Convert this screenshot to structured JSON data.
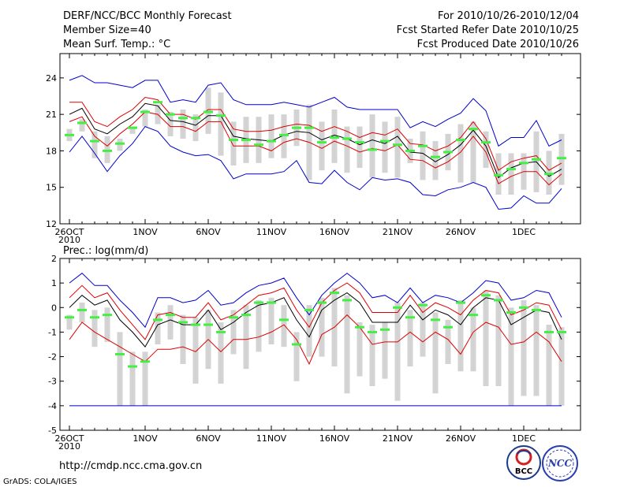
{
  "header": {
    "left_line1": "DERF/NCC/BCC Monthly Forecast",
    "left_line2": "Member Size=40",
    "left_line3": "Mean Surf. Temp.: °C",
    "right_line1": "For 2010/10/26-2010/12/04",
    "right_line2": "Fcst Started Refer Date 2010/10/25",
    "right_line3": "Fcst Produced Date 2010/10/26"
  },
  "footer": {
    "url": "http://cmdp.ncc.cma.gov.cn",
    "grads": "GrADS: COLA/IGES",
    "logo1_text": "BCC",
    "logo2_text": "NCC"
  },
  "colors": {
    "bar": "#d3d3d3",
    "ens_mean": "#000000",
    "spread": "#dd0000",
    "extremes": "#0000cc",
    "median": "#44ee44"
  },
  "chart_data": [
    {
      "type": "line",
      "title": "Mean Surf. Temp.: °C",
      "ylim": [
        12,
        26
      ],
      "yticks": [
        12,
        15,
        18,
        21,
        24
      ],
      "x_tick_labels": [
        "26OCT",
        "1NOV",
        "6NOV",
        "11NOV",
        "16NOV",
        "21NOV",
        "26NOV",
        "1DEC"
      ],
      "x_year_label": "2010",
      "days": 40,
      "series": [
        {
          "name": "max",
          "values": [
            23.8,
            24.2,
            23.6,
            23.6,
            23.4,
            23.2,
            23.8,
            23.8,
            22.0,
            22.2,
            22.0,
            23.4,
            23.6,
            22.2,
            21.8,
            21.8,
            21.8,
            22.0,
            21.8,
            21.6,
            22.0,
            22.4,
            21.6,
            21.4,
            21.4,
            21.4,
            21.4,
            19.9,
            20.4,
            20.0,
            20.6,
            21.1,
            22.3,
            21.3,
            18.4,
            19.1,
            19.1,
            20.5,
            18.4,
            18.9
          ]
        },
        {
          "name": "spread_upper",
          "values": [
            22.0,
            22.0,
            20.4,
            20.0,
            20.8,
            21.4,
            22.4,
            22.2,
            21.0,
            21.0,
            20.6,
            21.4,
            21.4,
            19.8,
            19.6,
            19.6,
            19.7,
            20.0,
            20.2,
            20.1,
            19.6,
            20.0,
            19.6,
            19.1,
            19.5,
            19.3,
            19.8,
            18.6,
            18.5,
            18.0,
            18.4,
            19.1,
            20.4,
            19.0,
            16.4,
            17.1,
            17.4,
            17.6,
            16.4,
            17.0
          ]
        },
        {
          "name": "mean",
          "values": [
            21.0,
            21.5,
            19.8,
            19.4,
            20.2,
            20.8,
            21.9,
            21.7,
            20.5,
            20.4,
            20.1,
            20.9,
            20.9,
            19.2,
            19.0,
            18.9,
            18.8,
            19.3,
            19.6,
            19.5,
            18.9,
            19.3,
            19.0,
            18.5,
            18.9,
            18.6,
            19.2,
            17.9,
            17.8,
            17.1,
            17.7,
            18.5,
            19.7,
            18.4,
            15.8,
            16.6,
            17.0,
            17.1,
            15.9,
            16.5
          ]
        },
        {
          "name": "spread_lower",
          "values": [
            20.4,
            20.8,
            19.2,
            18.4,
            19.4,
            20.2,
            21.2,
            21.0,
            20.0,
            20.0,
            19.6,
            20.4,
            20.4,
            18.4,
            18.4,
            18.4,
            18.0,
            18.7,
            19.0,
            18.7,
            18.2,
            18.8,
            18.4,
            17.9,
            18.2,
            18.0,
            18.5,
            17.3,
            17.2,
            16.6,
            17.1,
            17.9,
            19.2,
            17.9,
            15.3,
            15.9,
            16.3,
            16.3,
            15.2,
            16.1
          ]
        },
        {
          "name": "min",
          "values": [
            17.9,
            19.2,
            17.8,
            16.3,
            17.6,
            18.6,
            20.0,
            19.6,
            18.4,
            17.9,
            17.6,
            17.7,
            17.2,
            15.7,
            16.1,
            16.1,
            16.1,
            16.3,
            17.2,
            15.4,
            15.3,
            16.4,
            15.4,
            14.8,
            15.8,
            15.6,
            15.7,
            15.4,
            14.4,
            14.3,
            14.8,
            15.0,
            15.4,
            15.0,
            13.2,
            13.3,
            14.3,
            13.7,
            13.7,
            14.9
          ]
        },
        {
          "name": "median",
          "values": [
            19.3,
            20.3,
            18.8,
            18.0,
            18.6,
            19.9,
            21.2,
            22.0,
            21.0,
            20.7,
            20.7,
            21.2,
            20.9,
            18.9,
            18.9,
            18.5,
            18.8,
            19.3,
            19.9,
            19.9,
            18.7,
            19.1,
            19.0,
            18.7,
            18.1,
            18.8,
            18.5,
            18.0,
            18.4,
            17.5,
            17.9,
            18.9,
            19.8,
            18.7,
            16.0,
            16.5,
            17.0,
            17.3,
            16.1,
            17.4
          ]
        },
        {
          "name": "bar_top",
          "values": [
            19.8,
            20.6,
            19.6,
            19.2,
            19.0,
            20.0,
            21.4,
            21.8,
            21.2,
            21.4,
            21.0,
            23.2,
            22.8,
            20.4,
            20.8,
            20.8,
            21.0,
            21.0,
            21.4,
            21.8,
            20.4,
            21.4,
            20.0,
            20.0,
            21.0,
            20.4,
            20.8,
            19.0,
            19.6,
            18.8,
            19.4,
            20.2,
            20.4,
            19.6,
            17.8,
            17.8,
            17.8,
            19.6,
            18.0,
            19.4
          ]
        },
        {
          "name": "bar_bottom",
          "values": [
            18.8,
            19.6,
            17.4,
            17.0,
            18.0,
            19.4,
            20.0,
            20.2,
            19.2,
            19.0,
            18.8,
            19.4,
            17.6,
            16.8,
            17.0,
            17.0,
            17.4,
            17.4,
            18.4,
            15.6,
            16.4,
            17.0,
            16.2,
            16.6,
            15.8,
            16.2,
            15.8,
            17.0,
            15.6,
            15.6,
            16.4,
            15.4,
            15.4,
            16.6,
            14.4,
            14.4,
            14.8,
            14.6,
            14.4,
            15.2
          ]
        }
      ]
    },
    {
      "type": "line",
      "title": "Prec.: log(mm/d)",
      "ylim": [
        -5,
        2
      ],
      "yticks": [
        -5,
        -4,
        -3,
        -2,
        -1,
        0,
        1,
        2
      ],
      "x_tick_labels": [
        "26OCT",
        "1NOV",
        "6NOV",
        "11NOV",
        "16NOV",
        "21NOV",
        "26NOV",
        "1DEC"
      ],
      "x_year_label": "2010",
      "days": 40,
      "series": [
        {
          "name": "max",
          "values": [
            1.0,
            1.4,
            0.9,
            0.9,
            0.3,
            -0.2,
            -0.8,
            0.4,
            0.4,
            0.2,
            0.3,
            0.7,
            0.1,
            0.2,
            0.6,
            0.9,
            1.0,
            1.2,
            0.4,
            -0.3,
            0.5,
            1.0,
            1.4,
            1.0,
            0.4,
            0.5,
            0.2,
            0.8,
            0.2,
            0.5,
            0.4,
            0.2,
            0.6,
            1.1,
            1.0,
            0.3,
            0.4,
            0.7,
            0.6,
            -0.4
          ]
        },
        {
          "name": "spread_upper",
          "values": [
            0.4,
            0.9,
            0.4,
            0.6,
            -0.1,
            -0.7,
            -1.3,
            -0.3,
            -0.2,
            -0.4,
            -0.4,
            0.2,
            -0.5,
            -0.3,
            0.1,
            0.5,
            0.6,
            0.8,
            -0.1,
            -0.8,
            0.2,
            0.7,
            1.0,
            0.6,
            -0.2,
            -0.2,
            -0.2,
            0.5,
            -0.2,
            0.2,
            0.0,
            -0.3,
            0.3,
            0.7,
            0.6,
            -0.3,
            -0.1,
            0.2,
            0.1,
            -0.9
          ]
        },
        {
          "name": "mean",
          "values": [
            0.0,
            0.5,
            0.1,
            0.3,
            -0.5,
            -1.0,
            -1.6,
            -0.7,
            -0.5,
            -0.7,
            -0.7,
            -0.1,
            -0.9,
            -0.6,
            -0.2,
            0.1,
            0.2,
            0.4,
            -0.5,
            -1.2,
            -0.1,
            0.3,
            0.6,
            0.2,
            -0.6,
            -0.6,
            -0.6,
            0.1,
            -0.5,
            -0.1,
            -0.3,
            -0.7,
            0.0,
            0.4,
            0.3,
            -0.7,
            -0.4,
            -0.1,
            -0.2,
            -1.3
          ]
        },
        {
          "name": "spread_lower",
          "values": [
            -1.3,
            -0.6,
            -1.0,
            -1.3,
            -1.6,
            -1.9,
            -2.2,
            -1.7,
            -1.7,
            -1.6,
            -1.8,
            -1.3,
            -1.8,
            -1.3,
            -1.3,
            -1.2,
            -1.0,
            -0.7,
            -1.3,
            -2.3,
            -1.1,
            -0.8,
            -0.3,
            -0.8,
            -1.5,
            -1.4,
            -1.4,
            -1.0,
            -1.4,
            -1.0,
            -1.3,
            -1.9,
            -1.0,
            -0.6,
            -0.8,
            -1.5,
            -1.4,
            -1.0,
            -1.4,
            -2.2
          ]
        },
        {
          "name": "min",
          "values": [
            -4.0,
            -4.0,
            -4.0,
            -4.0,
            -4.0,
            -4.0,
            -4.0,
            -4.0,
            -4.0,
            -4.0,
            -4.0,
            -4.0,
            -4.0,
            -4.0,
            -4.0,
            -4.0,
            -4.0,
            -4.0,
            -4.0,
            -4.0,
            -4.0,
            -4.0,
            -4.0,
            -4.0,
            -4.0,
            -4.0,
            -4.0,
            -4.0,
            -4.0,
            -4.0,
            -4.0,
            -4.0,
            -4.0,
            -4.0,
            -4.0,
            -4.0,
            -4.0,
            -4.0,
            -4.0,
            -4.0
          ]
        },
        {
          "name": "median",
          "values": [
            -0.4,
            -0.1,
            -0.4,
            -0.3,
            -1.9,
            -2.4,
            -2.2,
            -0.5,
            -0.3,
            -0.6,
            -0.7,
            -0.7,
            -1.0,
            -0.4,
            -0.3,
            0.2,
            0.2,
            -0.5,
            -1.5,
            -0.1,
            0.2,
            0.6,
            0.3,
            -0.8,
            -1.0,
            -0.9,
            0.0,
            -0.4,
            0.1,
            -0.5,
            -0.8,
            0.2,
            -0.3,
            0.5,
            0.3,
            -0.2,
            0.0,
            -0.1,
            -1.0,
            -1.0
          ]
        },
        {
          "name": "bar_top",
          "values": [
            -0.3,
            0.2,
            -0.1,
            0.0,
            -1.0,
            -1.8,
            -1.8,
            -0.2,
            0.1,
            -0.3,
            -0.4,
            -0.1,
            -0.6,
            -0.1,
            0.1,
            0.3,
            0.4,
            0.1,
            -1.0,
            0.1,
            0.4,
            0.8,
            0.5,
            -0.6,
            -0.7,
            -0.6,
            0.2,
            -0.1,
            0.2,
            -0.2,
            -0.5,
            0.3,
            0.0,
            0.7,
            0.5,
            0.0,
            0.3,
            0.1,
            -0.7,
            -0.8
          ]
        },
        {
          "name": "bar_bottom",
          "values": [
            -0.9,
            -0.6,
            -1.6,
            -1.4,
            -4.0,
            -4.0,
            -4.0,
            -1.5,
            -1.3,
            -2.3,
            -3.1,
            -2.5,
            -3.1,
            -1.9,
            -2.5,
            -1.8,
            -1.5,
            -1.6,
            -3.0,
            -2.0,
            -2.0,
            -2.4,
            -3.5,
            -2.8,
            -3.2,
            -2.9,
            -3.8,
            -2.4,
            -2.0,
            -3.5,
            -2.3,
            -2.6,
            -2.6,
            -3.2,
            -3.2,
            -4.0,
            -3.6,
            -3.6,
            -4.0,
            -4.0
          ]
        }
      ]
    }
  ]
}
